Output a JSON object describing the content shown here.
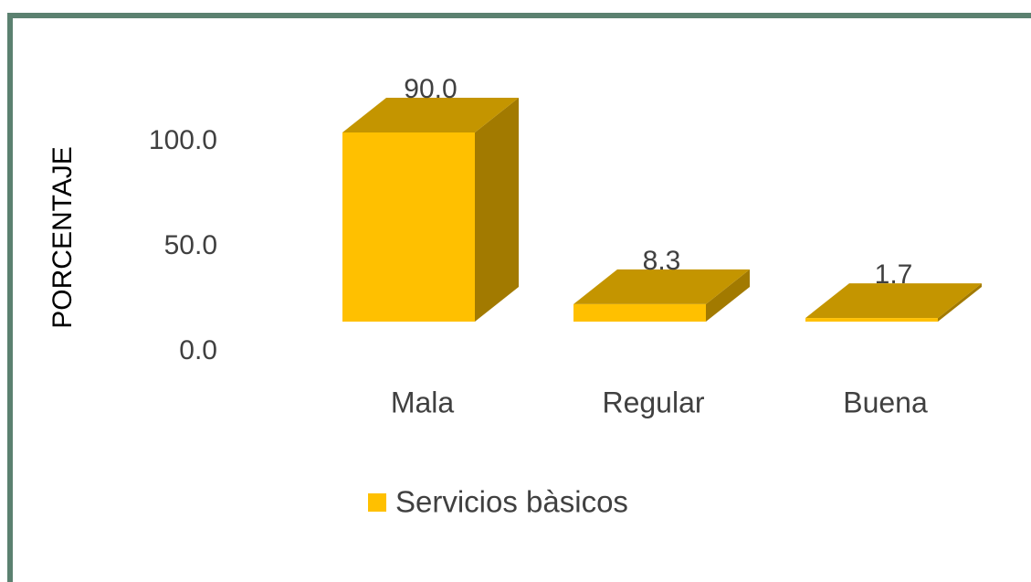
{
  "chart_data": {
    "type": "bar3d",
    "y_label": "PORCENTAJE",
    "categories": [
      "Mala",
      "Regular",
      "Buena"
    ],
    "series": [
      {
        "name": "Servicios bàsicos",
        "color": "#ffc000",
        "values": [
          90.0,
          8.3,
          1.7
        ],
        "value_labels": [
          "90.0",
          "8.3",
          "1.7"
        ]
      }
    ],
    "ylim": [
      0,
      100
    ],
    "yticks": [
      {
        "value": 0,
        "label": "0.0"
      },
      {
        "value": 50,
        "label": "50.0"
      },
      {
        "value": 100,
        "label": "100.0"
      }
    ],
    "grid": false,
    "legend": "bottom"
  }
}
